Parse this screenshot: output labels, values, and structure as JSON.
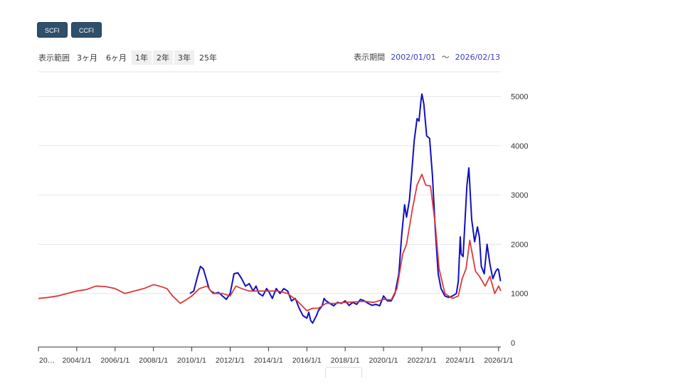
{
  "toolbar": {
    "buttons": [
      "SCFI",
      "CCFI"
    ],
    "range_label": "表示範囲",
    "ranges": [
      "3ヶ月",
      "6ヶ月",
      "1年",
      "2年",
      "3年",
      "25年"
    ],
    "period_label": "表示期間",
    "start_date": "2002/01/01",
    "tilde": "〜",
    "end_date": "2026/02/13"
  },
  "colors": {
    "scfi": "#1010c0",
    "ccfi": "#d93a3a",
    "grid": "#e6e6e6"
  },
  "chart_data": {
    "type": "line",
    "title": "",
    "xlabel": "",
    "ylabel": "",
    "xlim": [
      2002.0,
      2026.12
    ],
    "ylim": [
      0,
      5500
    ],
    "yticks": [
      0,
      1000,
      2000,
      3000,
      4000,
      5000
    ],
    "xticks": [
      {
        "x": 2002,
        "label": "20…"
      },
      {
        "x": 2004,
        "label": "2004/1/1"
      },
      {
        "x": 2006,
        "label": "2006/1/1"
      },
      {
        "x": 2008,
        "label": "2008/1/1"
      },
      {
        "x": 2010,
        "label": "2010/1/1"
      },
      {
        "x": 2012,
        "label": "2012/1/1"
      },
      {
        "x": 2014,
        "label": "2014/1/1"
      },
      {
        "x": 2016,
        "label": "2016/1/1"
      },
      {
        "x": 2018,
        "label": "2018/1/1"
      },
      {
        "x": 2020,
        "label": "2020/1/1"
      },
      {
        "x": 2022,
        "label": "2022/1/1"
      },
      {
        "x": 2024,
        "label": "2024/1/1"
      },
      {
        "x": 2026,
        "label": "2026/1/1"
      }
    ],
    "series": [
      {
        "name": "SCFI",
        "points": [
          [
            2009.9,
            1000
          ],
          [
            2010.1,
            1050
          ],
          [
            2010.2,
            1200
          ],
          [
            2010.3,
            1350
          ],
          [
            2010.45,
            1550
          ],
          [
            2010.6,
            1500
          ],
          [
            2010.75,
            1300
          ],
          [
            2010.9,
            1100
          ],
          [
            2011.0,
            1050
          ],
          [
            2011.2,
            1000
          ],
          [
            2011.4,
            1020
          ],
          [
            2011.6,
            950
          ],
          [
            2011.8,
            880
          ],
          [
            2012.0,
            1000
          ],
          [
            2012.1,
            1200
          ],
          [
            2012.2,
            1400
          ],
          [
            2012.4,
            1420
          ],
          [
            2012.6,
            1300
          ],
          [
            2012.8,
            1150
          ],
          [
            2013.0,
            1200
          ],
          [
            2013.2,
            1050
          ],
          [
            2013.35,
            1150
          ],
          [
            2013.5,
            1000
          ],
          [
            2013.7,
            950
          ],
          [
            2013.9,
            1100
          ],
          [
            2014.0,
            1050
          ],
          [
            2014.2,
            900
          ],
          [
            2014.4,
            1100
          ],
          [
            2014.6,
            1000
          ],
          [
            2014.8,
            1100
          ],
          [
            2015.0,
            1050
          ],
          [
            2015.2,
            850
          ],
          [
            2015.4,
            900
          ],
          [
            2015.6,
            700
          ],
          [
            2015.8,
            550
          ],
          [
            2016.0,
            500
          ],
          [
            2016.1,
            620
          ],
          [
            2016.2,
            450
          ],
          [
            2016.3,
            400
          ],
          [
            2016.5,
            550
          ],
          [
            2016.6,
            650
          ],
          [
            2016.8,
            750
          ],
          [
            2016.9,
            900
          ],
          [
            2017.0,
            850
          ],
          [
            2017.2,
            800
          ],
          [
            2017.4,
            750
          ],
          [
            2017.6,
            820
          ],
          [
            2017.8,
            800
          ],
          [
            2018.0,
            850
          ],
          [
            2018.2,
            760
          ],
          [
            2018.4,
            820
          ],
          [
            2018.6,
            780
          ],
          [
            2018.8,
            880
          ],
          [
            2019.0,
            850
          ],
          [
            2019.2,
            800
          ],
          [
            2019.4,
            760
          ],
          [
            2019.6,
            780
          ],
          [
            2019.8,
            750
          ],
          [
            2020.0,
            950
          ],
          [
            2020.2,
            850
          ],
          [
            2020.4,
            850
          ],
          [
            2020.6,
            1000
          ],
          [
            2020.8,
            1400
          ],
          [
            2020.95,
            2200
          ],
          [
            2021.1,
            2800
          ],
          [
            2021.2,
            2550
          ],
          [
            2021.35,
            2900
          ],
          [
            2021.5,
            3600
          ],
          [
            2021.6,
            4100
          ],
          [
            2021.75,
            4550
          ],
          [
            2021.85,
            4500
          ],
          [
            2021.95,
            4900
          ],
          [
            2022.0,
            5050
          ],
          [
            2022.1,
            4850
          ],
          [
            2022.25,
            4200
          ],
          [
            2022.4,
            4150
          ],
          [
            2022.55,
            3400
          ],
          [
            2022.7,
            2300
          ],
          [
            2022.85,
            1400
          ],
          [
            2023.0,
            1100
          ],
          [
            2023.2,
            950
          ],
          [
            2023.4,
            920
          ],
          [
            2023.6,
            950
          ],
          [
            2023.8,
            1000
          ],
          [
            2023.9,
            1250
          ],
          [
            2024.0,
            2150
          ],
          [
            2024.05,
            1800
          ],
          [
            2024.15,
            1750
          ],
          [
            2024.35,
            3200
          ],
          [
            2024.45,
            3550
          ],
          [
            2024.6,
            2500
          ],
          [
            2024.75,
            2050
          ],
          [
            2024.9,
            2350
          ],
          [
            2025.0,
            2150
          ],
          [
            2025.1,
            1550
          ],
          [
            2025.25,
            1400
          ],
          [
            2025.4,
            2000
          ],
          [
            2025.55,
            1600
          ],
          [
            2025.7,
            1300
          ],
          [
            2025.85,
            1450
          ],
          [
            2025.95,
            1500
          ],
          [
            2026.0,
            1480
          ],
          [
            2026.1,
            1250
          ]
        ]
      },
      {
        "name": "CCFI",
        "points": [
          [
            2002.0,
            900
          ],
          [
            2002.5,
            920
          ],
          [
            2003.0,
            950
          ],
          [
            2003.5,
            1000
          ],
          [
            2004.0,
            1050
          ],
          [
            2004.5,
            1080
          ],
          [
            2005.0,
            1150
          ],
          [
            2005.5,
            1140
          ],
          [
            2006.0,
            1100
          ],
          [
            2006.5,
            1000
          ],
          [
            2007.0,
            1050
          ],
          [
            2007.5,
            1100
          ],
          [
            2008.0,
            1180
          ],
          [
            2008.3,
            1150
          ],
          [
            2008.7,
            1100
          ],
          [
            2009.0,
            950
          ],
          [
            2009.4,
            800
          ],
          [
            2009.7,
            870
          ],
          [
            2010.0,
            950
          ],
          [
            2010.4,
            1100
          ],
          [
            2010.8,
            1150
          ],
          [
            2011.1,
            1000
          ],
          [
            2011.6,
            1000
          ],
          [
            2012.0,
            950
          ],
          [
            2012.3,
            1150
          ],
          [
            2012.6,
            1100
          ],
          [
            2013.0,
            1050
          ],
          [
            2013.5,
            1050
          ],
          [
            2014.0,
            1050
          ],
          [
            2014.5,
            1050
          ],
          [
            2015.0,
            1000
          ],
          [
            2015.5,
            850
          ],
          [
            2016.0,
            650
          ],
          [
            2016.3,
            700
          ],
          [
            2016.6,
            700
          ],
          [
            2017.0,
            800
          ],
          [
            2017.5,
            800
          ],
          [
            2018.0,
            820
          ],
          [
            2018.5,
            830
          ],
          [
            2019.0,
            840
          ],
          [
            2019.5,
            820
          ],
          [
            2020.0,
            880
          ],
          [
            2020.4,
            870
          ],
          [
            2020.7,
            1100
          ],
          [
            2021.0,
            1800
          ],
          [
            2021.2,
            2000
          ],
          [
            2021.5,
            2700
          ],
          [
            2021.75,
            3200
          ],
          [
            2022.0,
            3420
          ],
          [
            2022.2,
            3200
          ],
          [
            2022.45,
            3180
          ],
          [
            2022.7,
            2400
          ],
          [
            2022.9,
            1500
          ],
          [
            2023.2,
            1000
          ],
          [
            2023.6,
            900
          ],
          [
            2023.9,
            950
          ],
          [
            2024.1,
            1300
          ],
          [
            2024.3,
            1500
          ],
          [
            2024.5,
            2080
          ],
          [
            2024.8,
            1450
          ],
          [
            2025.0,
            1350
          ],
          [
            2025.3,
            1150
          ],
          [
            2025.55,
            1350
          ],
          [
            2025.8,
            1000
          ],
          [
            2026.0,
            1150
          ],
          [
            2026.12,
            1050
          ]
        ]
      }
    ]
  }
}
